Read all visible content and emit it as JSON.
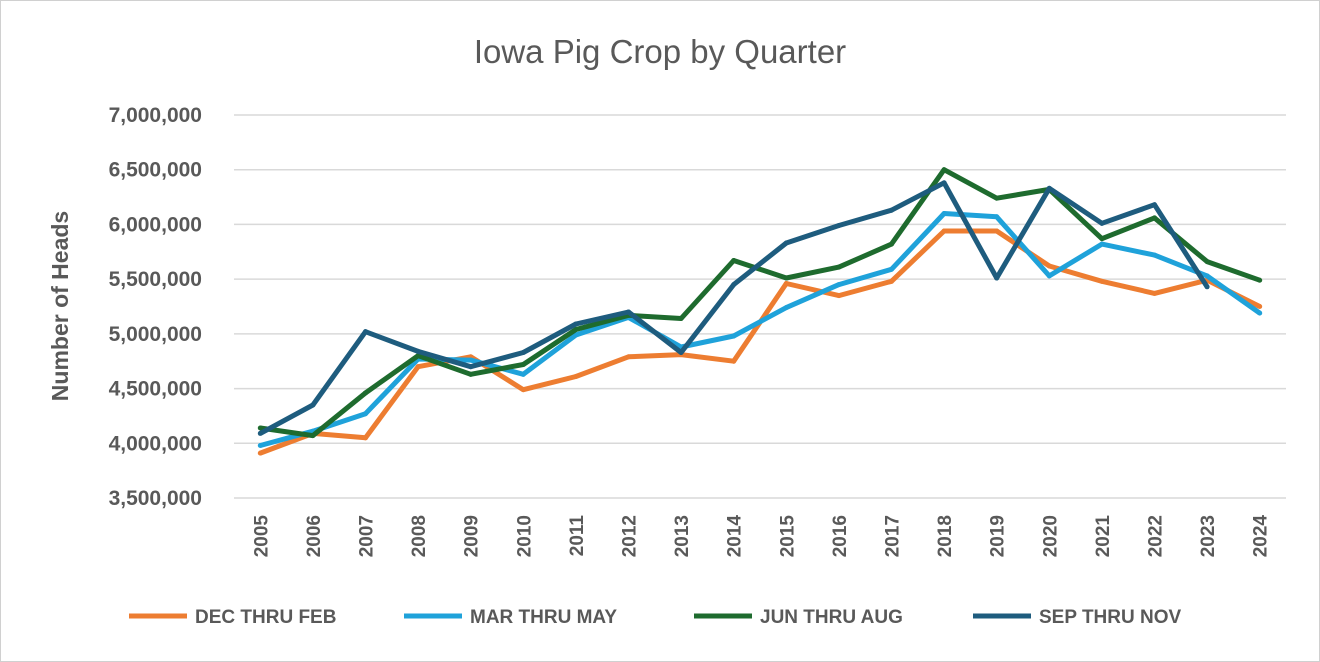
{
  "chart_data": {
    "type": "line",
    "title": "Iowa Pig Crop by Quarter",
    "xlabel": "",
    "ylabel": "Number of Heads",
    "ylim": [
      3500000,
      7000000
    ],
    "yticks": [
      3500000,
      4000000,
      4500000,
      5000000,
      5500000,
      6000000,
      6500000,
      7000000
    ],
    "ytick_labels": [
      "3,500,000",
      "4,000,000",
      "4,500,000",
      "5,000,000",
      "5,500,000",
      "6,000,000",
      "6,500,000",
      "7,000,000"
    ],
    "categories": [
      "2005",
      "2006",
      "2007",
      "2008",
      "2009",
      "2010",
      "2011",
      "2012",
      "2013",
      "2014",
      "2015",
      "2016",
      "2017",
      "2018",
      "2019",
      "2020",
      "2021",
      "2022",
      "2023",
      "2024"
    ],
    "grid": true,
    "legend_position": "bottom",
    "series": [
      {
        "name": "DEC THRU FEB",
        "color": "#ED7D31",
        "values": [
          3910000,
          4090000,
          4050000,
          4700000,
          4790000,
          4490000,
          4610000,
          4790000,
          4810000,
          4750000,
          5460000,
          5350000,
          5480000,
          5940000,
          5940000,
          5620000,
          5480000,
          5370000,
          5490000,
          5250000
        ]
      },
      {
        "name": "MAR THRU MAY",
        "color": "#1FA2DA",
        "values": [
          3980000,
          4110000,
          4270000,
          4770000,
          4760000,
          4630000,
          4990000,
          5150000,
          4880000,
          4980000,
          5240000,
          5450000,
          5590000,
          6100000,
          6070000,
          5530000,
          5820000,
          5720000,
          5530000,
          5190000
        ]
      },
      {
        "name": "JUN THRU AUG",
        "color": "#1E6B2E",
        "values": [
          4140000,
          4070000,
          4460000,
          4800000,
          4630000,
          4720000,
          5040000,
          5170000,
          5140000,
          5670000,
          5510000,
          5610000,
          5820000,
          6500000,
          6240000,
          6320000,
          5870000,
          6060000,
          5660000,
          5490000
        ]
      },
      {
        "name": "SEP THRU NOV",
        "color": "#1E5C7E",
        "values": [
          4090000,
          4350000,
          5020000,
          4840000,
          4700000,
          4830000,
          5090000,
          5200000,
          4830000,
          5450000,
          5830000,
          5990000,
          6130000,
          6380000,
          5510000,
          6330000,
          6010000,
          6180000,
          5430000,
          null
        ]
      }
    ]
  }
}
